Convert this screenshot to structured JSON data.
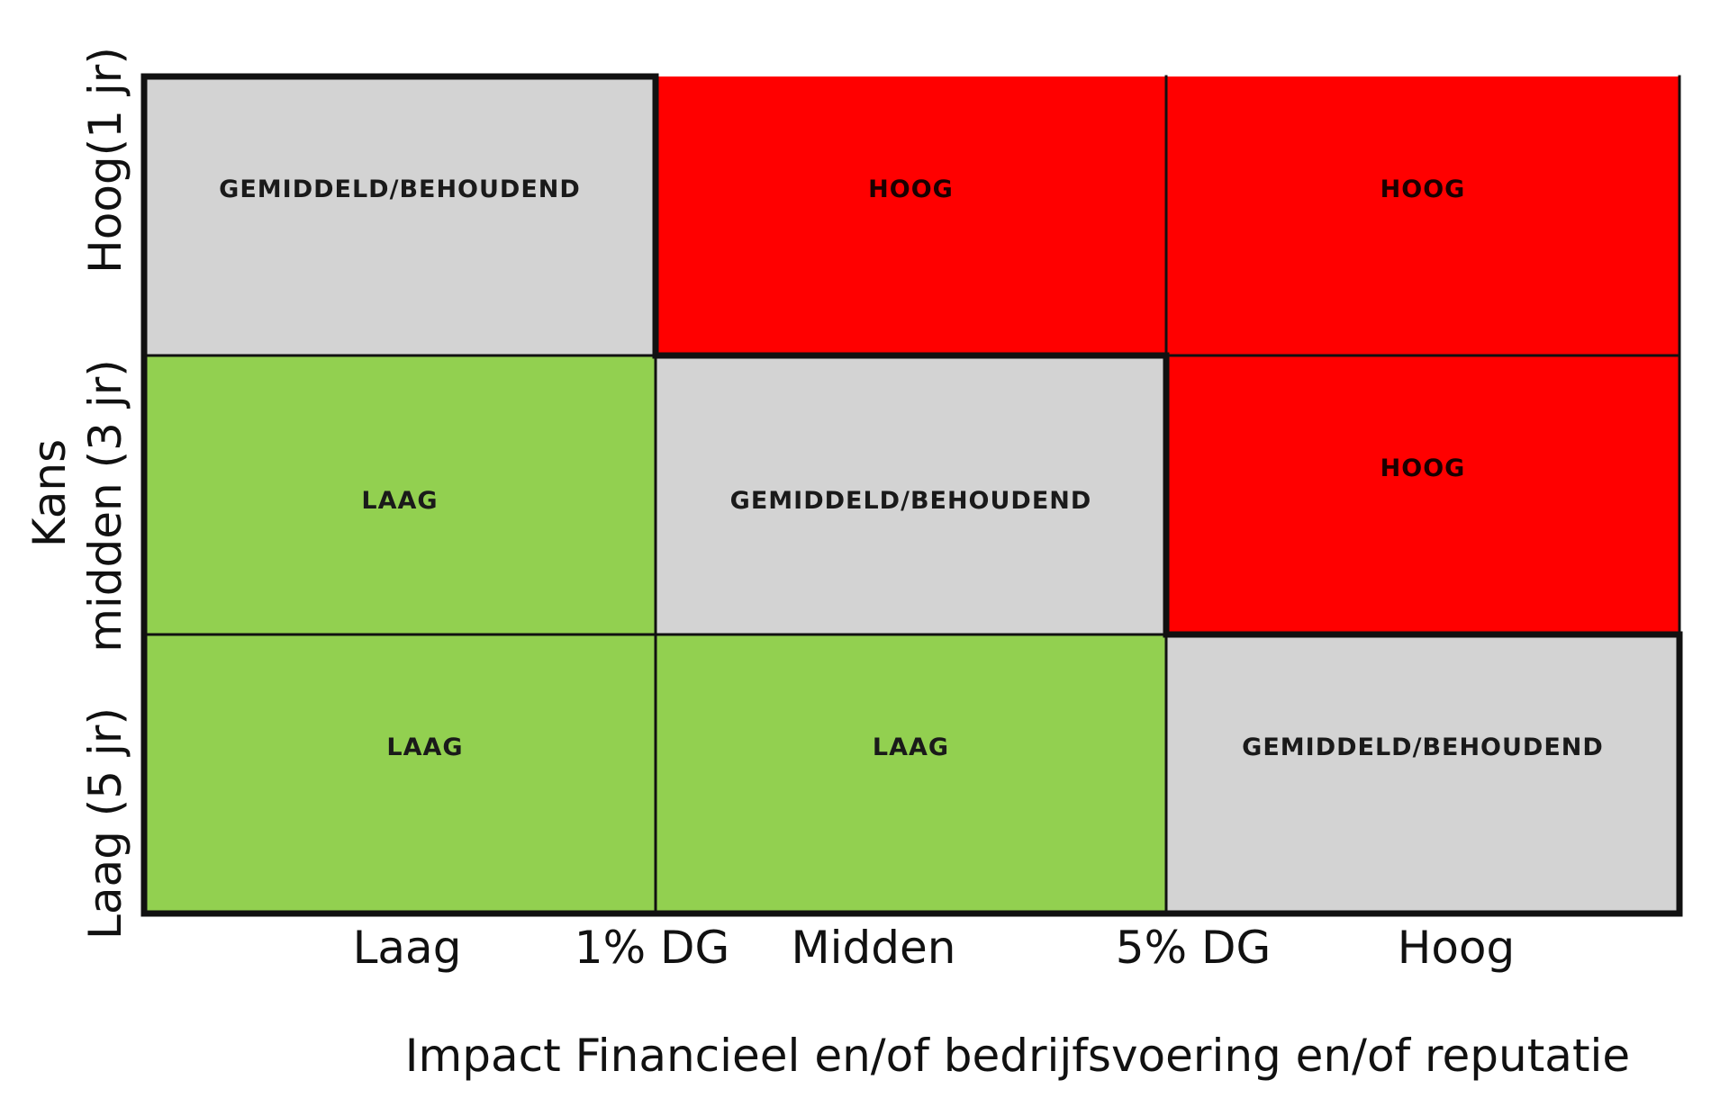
{
  "matrix": {
    "rows": [
      {
        "label": "Hoog(1 jr)",
        "cells": [
          {
            "text": "GEMIDDELD/BEHOUDEND",
            "level": "gemiddeld"
          },
          {
            "text": "HOOG",
            "level": "hoog"
          },
          {
            "text": "HOOG",
            "level": "hoog"
          }
        ]
      },
      {
        "label": "midden (3 jr)",
        "cells": [
          {
            "text": "LAAG",
            "level": "laag"
          },
          {
            "text": "GEMIDDELD/BEHOUDEND",
            "level": "gemiddeld"
          },
          {
            "text": "HOOG",
            "level": "hoog"
          }
        ]
      },
      {
        "label": "Laag (5 jr)",
        "cells": [
          {
            "text": "LAAG",
            "level": "laag"
          },
          {
            "text": "LAAG",
            "level": "laag"
          },
          {
            "text": "GEMIDDELD/BEHOUDEND",
            "level": "gemiddeld"
          }
        ]
      }
    ],
    "colors": {
      "hoog": "#ff0000",
      "gemiddeld": "#d3d3d3",
      "laag": "#92d050",
      "border": "#111111"
    }
  },
  "y_axis": {
    "title": "Kans"
  },
  "x_axis": {
    "ticks": [
      "Laag",
      "1% DG",
      "Midden",
      "5% DG",
      "Hoog"
    ],
    "title": "Impact Financieel en/of bedrijfsvoering en/of reputatie"
  }
}
